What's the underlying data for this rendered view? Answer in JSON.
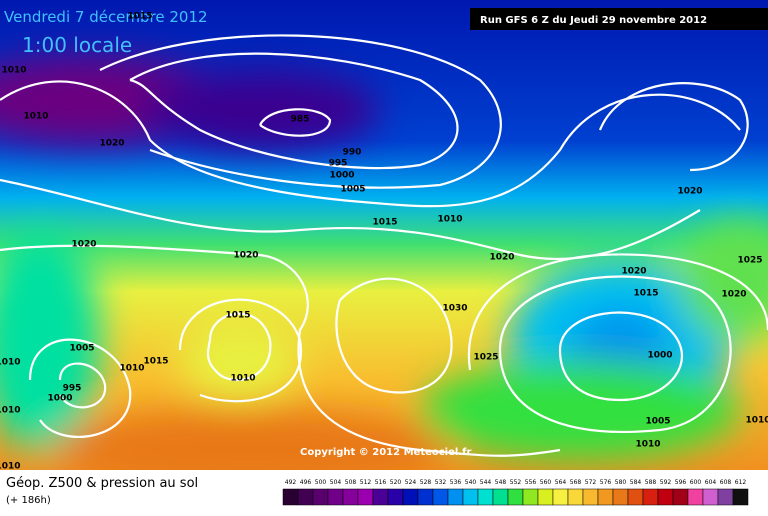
{
  "header": {
    "date": "Vendredi 7 décembre 2012",
    "time": "1:00 locale",
    "run": "Run GFS 6 Z du Jeudi 29 novembre 2012"
  },
  "copyright": "Copyright © 2012 Meteociel.fr",
  "footer": {
    "title": "Géop. Z500 & pression au sol",
    "lead": "(+ 186h)"
  },
  "isobar_labels": [
    1015,
    1010,
    1010,
    985,
    990,
    995,
    1000,
    1005,
    1020,
    1015,
    1010,
    1020,
    1020,
    1020,
    1025,
    1020,
    1015,
    1030,
    1025,
    1000,
    1005,
    1010,
    1015,
    1010,
    1005,
    995,
    1000,
    1010,
    1010,
    1010,
    1010,
    1020,
    1020,
    1015,
    1010
  ],
  "legend": [
    {
      "label": 492,
      "color": "#2a0033"
    },
    {
      "label": 496,
      "color": "#420052"
    },
    {
      "label": 500,
      "color": "#5a006e"
    },
    {
      "label": 504,
      "color": "#700088"
    },
    {
      "label": 508,
      "color": "#86009c"
    },
    {
      "label": 512,
      "color": "#9a00b0"
    },
    {
      "label": 516,
      "color": "#4a0096"
    },
    {
      "label": 520,
      "color": "#2a00a8"
    },
    {
      "label": 524,
      "color": "#0010b8"
    },
    {
      "label": 528,
      "color": "#0030d0"
    },
    {
      "label": 532,
      "color": "#0058e8"
    },
    {
      "label": 536,
      "color": "#0090f0"
    },
    {
      "label": 540,
      "color": "#00c0f0"
    },
    {
      "label": 544,
      "color": "#00e0d0"
    },
    {
      "label": 548,
      "color": "#00e090"
    },
    {
      "label": 552,
      "color": "#30e040"
    },
    {
      "label": 556,
      "color": "#90e820"
    },
    {
      "label": 560,
      "color": "#d8f020"
    },
    {
      "label": 564,
      "color": "#f8f040"
    },
    {
      "label": 568,
      "color": "#f8d838"
    },
    {
      "label": 572,
      "color": "#f8b830"
    },
    {
      "label": 576,
      "color": "#f09820"
    },
    {
      "label": 580,
      "color": "#e87818"
    },
    {
      "label": 584,
      "color": "#e05010"
    },
    {
      "label": 588,
      "color": "#d82010"
    },
    {
      "label": 592,
      "color": "#c00010"
    },
    {
      "label": 596,
      "color": "#a00018"
    },
    {
      "label": 600,
      "color": "#f040a0"
    },
    {
      "label": 604,
      "color": "#d060d0"
    },
    {
      "label": 608,
      "color": "#8040a0"
    },
    {
      "label": 612,
      "color": "#101010"
    }
  ]
}
